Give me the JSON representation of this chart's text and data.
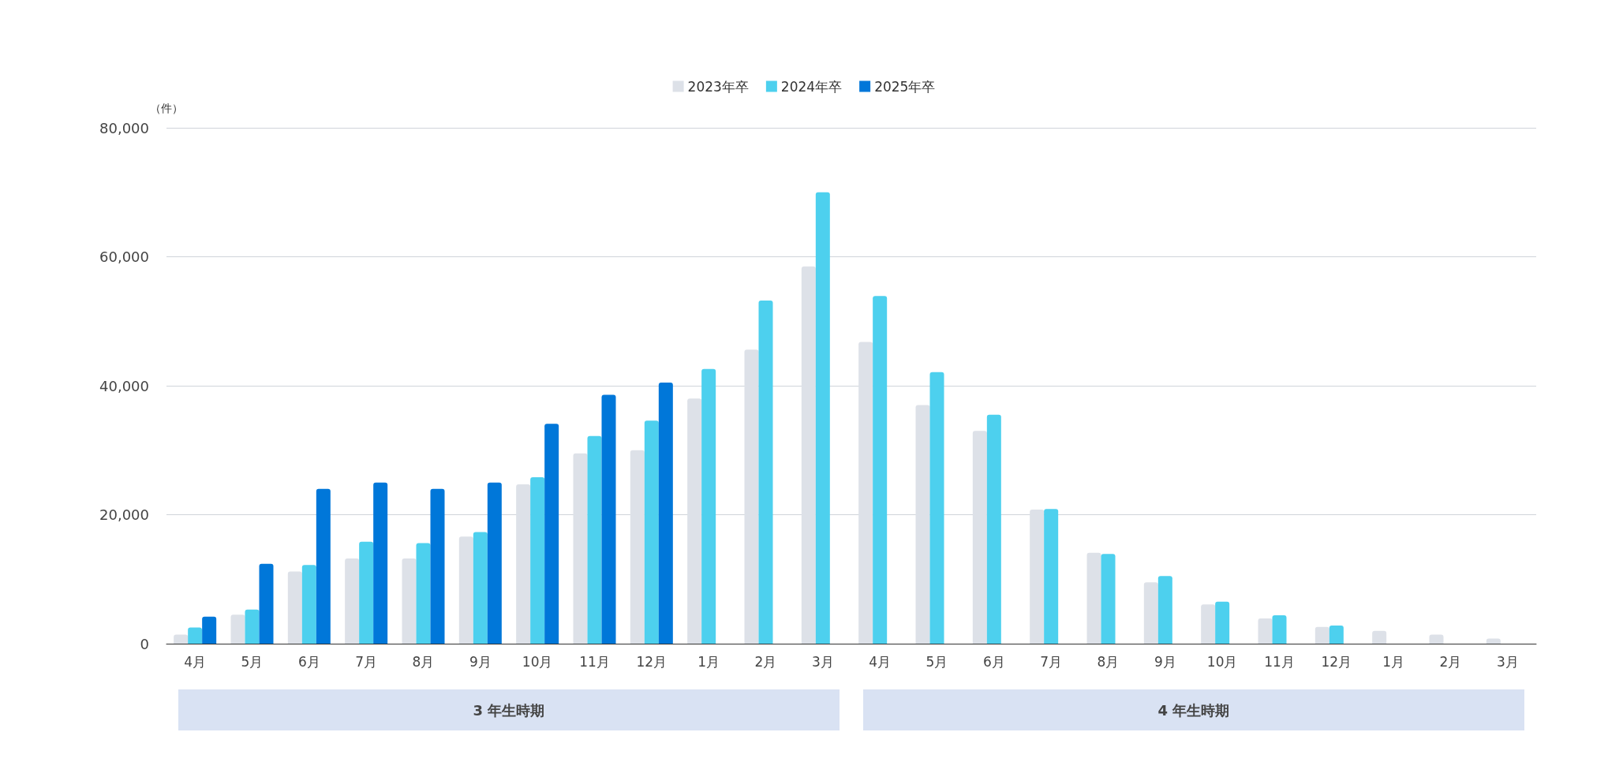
{
  "chart_data": {
    "type": "bar",
    "ylabel": "（件）",
    "categories": [
      "4月",
      "5月",
      "6月",
      "7月",
      "8月",
      "9月",
      "10月",
      "11月",
      "12月",
      "1月",
      "2月",
      "3月",
      "4月",
      "5月",
      "6月",
      "7月",
      "8月",
      "9月",
      "10月",
      "11月",
      "12月",
      "1月",
      "2月",
      "3月"
    ],
    "series": [
      {
        "name": "2023年卒",
        "color": "#dde1e8",
        "values": [
          1400,
          4500,
          11200,
          13200,
          13200,
          16600,
          24700,
          29500,
          30000,
          38000,
          45600,
          58500,
          46800,
          37000,
          33000,
          20800,
          14100,
          9500,
          6100,
          3900,
          2600,
          2000,
          1400,
          800
        ]
      },
      {
        "name": "2024年卒",
        "color": "#4dd0ee",
        "values": [
          2500,
          5300,
          12200,
          15800,
          15600,
          17300,
          25800,
          32200,
          34600,
          42600,
          53200,
          70000,
          53900,
          42100,
          35500,
          20900,
          13900,
          10500,
          6500,
          4400,
          2800,
          null,
          null,
          null
        ]
      },
      {
        "name": "2025年卒",
        "color": "#0077d9",
        "values": [
          4200,
          12400,
          24000,
          25000,
          24000,
          25000,
          34100,
          38600,
          40500,
          null,
          null,
          null,
          null,
          null,
          null,
          null,
          null,
          null,
          null,
          null,
          null,
          null,
          null,
          null
        ]
      }
    ],
    "ylim": [
      0,
      80000
    ],
    "yticks": [
      {
        "value": 0,
        "label": "0"
      },
      {
        "value": 20000,
        "label": "20,000"
      },
      {
        "value": 40000,
        "label": "40,000"
      },
      {
        "value": 60000,
        "label": "60,000"
      },
      {
        "value": 80000,
        "label": "80,000"
      }
    ],
    "grid": "y",
    "legend": "top",
    "annotations": [
      "3 年生時期",
      "4 年生時期"
    ]
  }
}
